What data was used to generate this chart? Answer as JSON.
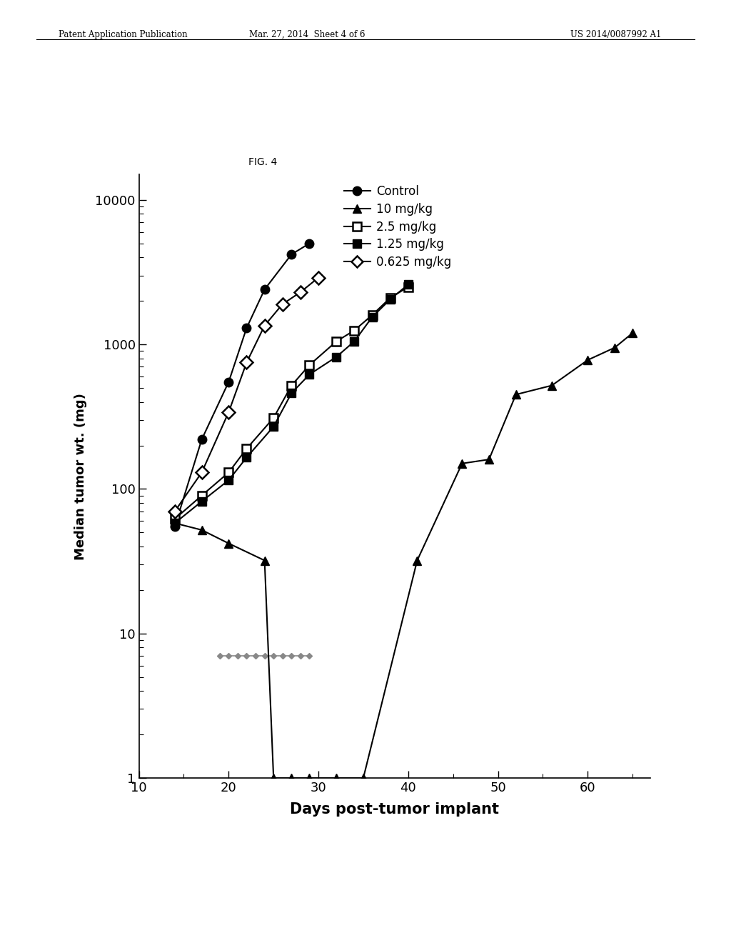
{
  "title": "FIG. 4",
  "xlabel": "Days post-tumor implant",
  "ylabel": "Median tumor wt. (mg)",
  "xlim": [
    10,
    67
  ],
  "ylim_log": [
    1,
    15000
  ],
  "xticks": [
    10,
    20,
    30,
    40,
    50,
    60
  ],
  "header_left": "Patent Application Publication",
  "header_mid": "Mar. 27, 2014  Sheet 4 of 6",
  "header_right": "US 2014/0087992 A1",
  "series": {
    "control": {
      "label": "Control",
      "marker": "o",
      "x": [
        14,
        17,
        20,
        22,
        24,
        27,
        29
      ],
      "y": [
        55,
        220,
        550,
        1300,
        2400,
        4200,
        5000
      ]
    },
    "10mgkg": {
      "label": "10 mg/kg",
      "marker": "^",
      "x": [
        14,
        17,
        20,
        24,
        25,
        27,
        29,
        32,
        35,
        41,
        46,
        49,
        52,
        56,
        60,
        63,
        65
      ],
      "y": [
        58,
        52,
        42,
        32,
        1,
        1,
        1,
        1,
        1,
        32,
        150,
        160,
        450,
        520,
        780,
        950,
        1200
      ]
    },
    "2p5mgkg": {
      "label": "2.5 mg/kg",
      "marker": "s",
      "fillstyle": "none",
      "x": [
        14,
        17,
        20,
        22,
        25,
        27,
        29,
        32,
        34,
        36,
        38,
        40
      ],
      "y": [
        62,
        90,
        130,
        190,
        310,
        520,
        720,
        1050,
        1250,
        1600,
        2100,
        2500
      ]
    },
    "1p25mgkg": {
      "label": "1.25 mg/kg",
      "marker": "s",
      "fillstyle": "full",
      "x": [
        14,
        17,
        20,
        22,
        25,
        27,
        29,
        32,
        34,
        36,
        38,
        40
      ],
      "y": [
        58,
        82,
        115,
        165,
        270,
        460,
        620,
        820,
        1050,
        1550,
        2050,
        2600
      ]
    },
    "0p625mgkg": {
      "label": "0.625 mg/kg",
      "marker": "D",
      "fillstyle": "none",
      "x": [
        14,
        17,
        20,
        22,
        24,
        26,
        28,
        30
      ],
      "y": [
        70,
        130,
        340,
        750,
        1350,
        1900,
        2300,
        2900
      ]
    }
  },
  "gray_x": [
    19,
    20,
    21,
    22,
    23,
    24,
    25,
    26,
    27,
    28,
    29
  ],
  "gray_y": [
    7,
    7,
    7,
    7,
    7,
    7,
    7,
    7,
    7,
    7,
    7
  ]
}
